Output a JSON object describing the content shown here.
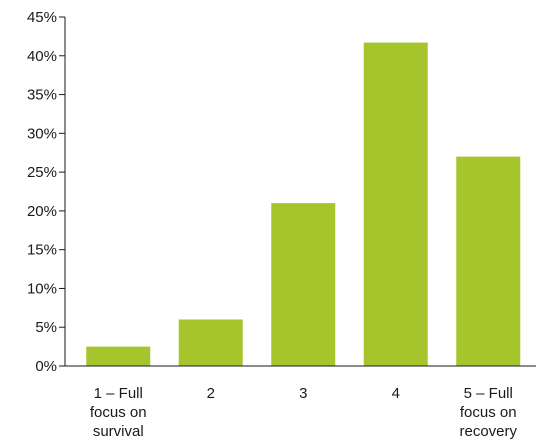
{
  "chart_data": {
    "type": "bar",
    "title": "",
    "xlabel": "",
    "ylabel": "",
    "categories": [
      [
        "1 – Full",
        "focus on",
        "survival"
      ],
      [
        "2"
      ],
      [
        "3"
      ],
      [
        "4"
      ],
      [
        "5 – Full",
        "focus on",
        "recovery"
      ]
    ],
    "values": [
      2.5,
      6,
      21,
      41.7,
      27
    ],
    "ylim": [
      0,
      45
    ],
    "yticks": [
      0,
      5,
      10,
      15,
      20,
      25,
      30,
      35,
      40,
      45
    ],
    "ytick_labels": [
      "0%",
      "5%",
      "10%",
      "15%",
      "20%",
      "25%",
      "30%",
      "35%",
      "40%",
      "45%"
    ],
    "bar_color": "#a6c52d",
    "grid": false,
    "legend": "none"
  }
}
